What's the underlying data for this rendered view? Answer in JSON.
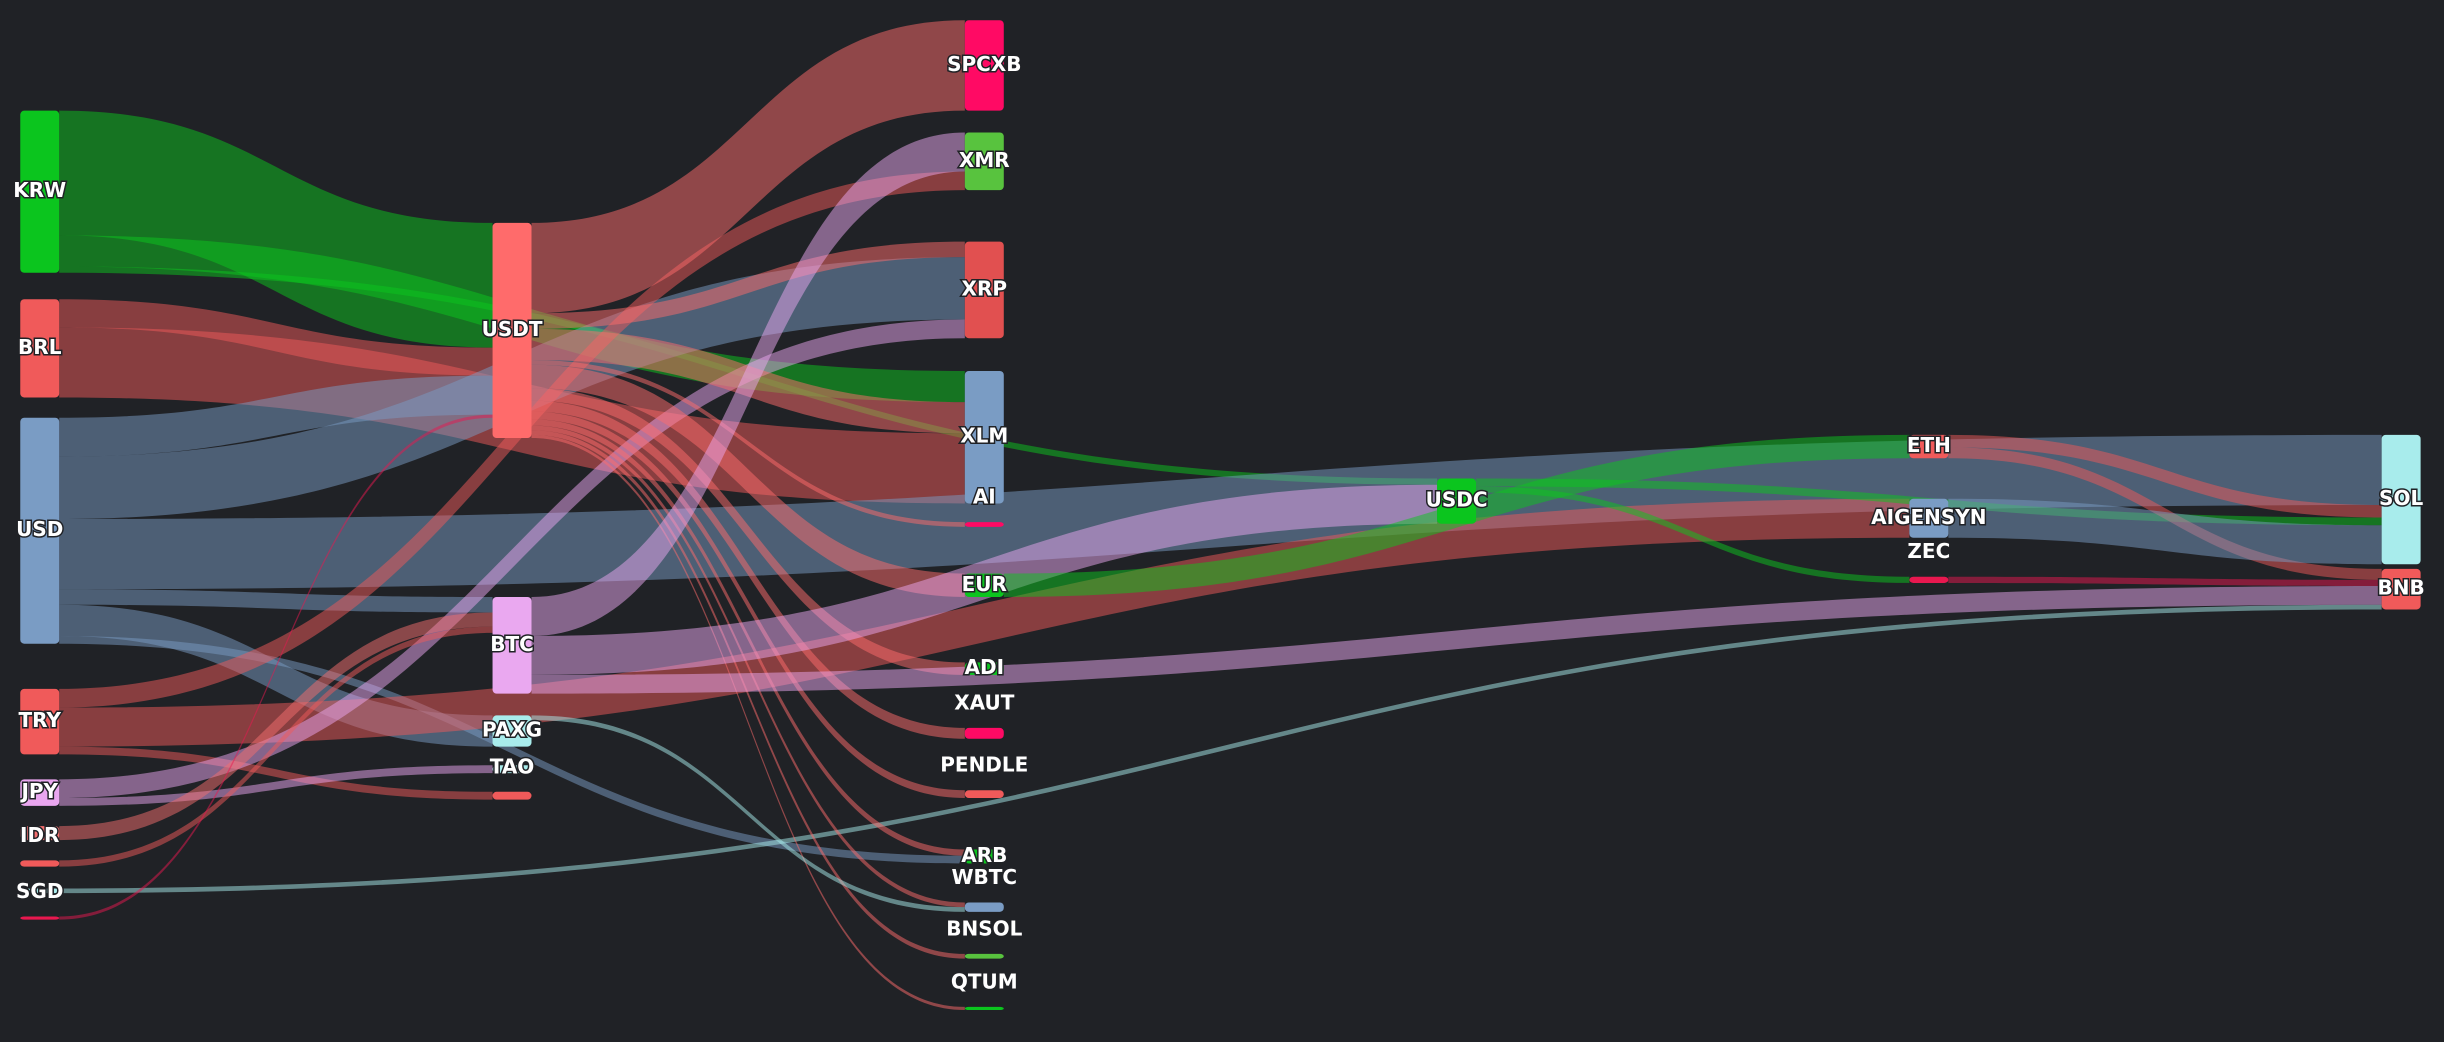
{
  "chart_data": {
    "type": "sankey",
    "nodes": [
      {
        "label": "KRW",
        "color": "#0bc51e",
        "column": 0
      },
      {
        "label": "BRL",
        "color": "#f05a5a",
        "column": 0
      },
      {
        "label": "USD",
        "color": "#7a9cc4",
        "column": 0
      },
      {
        "label": "TRY",
        "color": "#f05a5a",
        "column": 0
      },
      {
        "label": "JPY",
        "color": "#e9a6ef",
        "column": 0
      },
      {
        "label": null,
        "color": "#f46e6e",
        "column": 0
      },
      {
        "label": "IDR",
        "color": "#f05a5a",
        "column": 0
      },
      {
        "label": null,
        "color": "#a8ecec",
        "column": 0
      },
      {
        "label": "SGD",
        "color": "#e8184f",
        "column": 0
      },
      {
        "label": "USDT",
        "color": "#ff6b6b",
        "column": 1
      },
      {
        "label": "BTC",
        "color": "#eaa8f0",
        "column": 1
      },
      {
        "label": "PAXG",
        "color": "#a8ecec",
        "column": 1
      },
      {
        "label": null,
        "color": "#a8ecec",
        "column": 1
      },
      {
        "label": "TAO",
        "color": "#f05a5a",
        "column": 1
      },
      {
        "label": "SPCXB",
        "color": "#ff0a64",
        "column": 2
      },
      {
        "label": "XMR",
        "color": "#58c33e",
        "column": 2
      },
      {
        "label": "XRP",
        "color": "#e15050",
        "column": 2
      },
      {
        "label": "XLM",
        "color": "#7a9cc4",
        "column": 2
      },
      {
        "label": "AI",
        "color": "#ff0a64",
        "column": 2
      },
      {
        "label": "EUR",
        "color": "#0bc51e",
        "column": 2
      },
      {
        "label": "ADI",
        "color": "#0bc51e",
        "column": 2
      },
      {
        "label": "XAUT",
        "color": "#ff0a64",
        "column": 2
      },
      {
        "label": "PENDLE",
        "color": "#f05a5a",
        "column": 2
      },
      {
        "label": "ARB",
        "color": "#0bc51e",
        "column": 2
      },
      {
        "label": "WBTC",
        "color": "#7a9cc4",
        "column": 2
      },
      {
        "label": "BNSOL",
        "color": "#58c33e",
        "column": 2
      },
      {
        "label": "QTUM",
        "color": "#0bc51e",
        "column": 2
      },
      {
        "label": "USDC",
        "color": "#0bc51e",
        "column": 3
      },
      {
        "label": "ETH",
        "color": "#f05a5a",
        "column": 4
      },
      {
        "label": "AIGENSYN",
        "color": "#7a9cc4",
        "column": 4
      },
      {
        "label": "ZEC",
        "color": "#e8184f",
        "column": 4
      },
      {
        "label": "SOL",
        "color": "#a8ecec",
        "column": 5
      },
      {
        "label": "BNB",
        "color": "#f05a5a",
        "column": 5
      }
    ],
    "links": [
      {
        "source": 0,
        "target": 9,
        "value": 80
      },
      {
        "source": 0,
        "target": 17,
        "value": 20
      },
      {
        "source": 0,
        "target": 27,
        "value": 4
      },
      {
        "source": 1,
        "target": 17,
        "value": 45
      },
      {
        "source": 1,
        "target": 9,
        "value": 18
      },
      {
        "source": 2,
        "target": 16,
        "value": 40
      },
      {
        "source": 2,
        "target": 31,
        "value": 45
      },
      {
        "source": 2,
        "target": 9,
        "value": 25
      },
      {
        "source": 2,
        "target": 11,
        "value": 20
      },
      {
        "source": 2,
        "target": 10,
        "value": 10
      },
      {
        "source": 2,
        "target": 23,
        "value": 5
      },
      {
        "source": 3,
        "target": 29,
        "value": 25
      },
      {
        "source": 3,
        "target": 15,
        "value": 12
      },
      {
        "source": 3,
        "target": 13,
        "value": 5
      },
      {
        "source": 4,
        "target": 16,
        "value": 12
      },
      {
        "source": 4,
        "target": 12,
        "value": 5
      },
      {
        "source": 5,
        "target": 10,
        "value": 9
      },
      {
        "source": 6,
        "target": 10,
        "value": 4
      },
      {
        "source": 7,
        "target": 32,
        "value": 3
      },
      {
        "source": 8,
        "target": 9,
        "value": 2
      },
      {
        "source": 9,
        "target": 14,
        "value": 58
      },
      {
        "source": 9,
        "target": 17,
        "value": 20
      },
      {
        "source": 9,
        "target": 16,
        "value": 10
      },
      {
        "source": 9,
        "target": 18,
        "value": 3
      },
      {
        "source": 9,
        "target": 19,
        "value": 15
      },
      {
        "source": 9,
        "target": 20,
        "value": 8
      },
      {
        "source": 9,
        "target": 21,
        "value": 7
      },
      {
        "source": 9,
        "target": 22,
        "value": 5
      },
      {
        "source": 9,
        "target": 23,
        "value": 4
      },
      {
        "source": 9,
        "target": 24,
        "value": 3
      },
      {
        "source": 9,
        "target": 25,
        "value": 3
      },
      {
        "source": 9,
        "target": 26,
        "value": 2
      },
      {
        "source": 10,
        "target": 15,
        "value": 25
      },
      {
        "source": 10,
        "target": 27,
        "value": 25
      },
      {
        "source": 10,
        "target": 32,
        "value": 12
      },
      {
        "source": 11,
        "target": 24,
        "value": 3
      },
      {
        "source": 19,
        "target": 28,
        "value": 15
      },
      {
        "source": 27,
        "target": 31,
        "value": 5
      },
      {
        "source": 27,
        "target": 30,
        "value": 4
      },
      {
        "source": 28,
        "target": 31,
        "value": 8
      },
      {
        "source": 28,
        "target": 32,
        "value": 7
      },
      {
        "source": 29,
        "target": 31,
        "value": 25
      },
      {
        "source": 30,
        "target": 32,
        "value": 4
      }
    ]
  }
}
